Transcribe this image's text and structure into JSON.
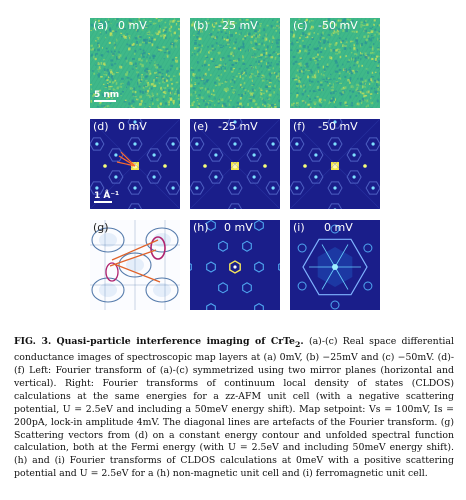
{
  "panels": [
    {
      "id": "a",
      "label": "(a)",
      "energy": "0 mV",
      "scale": "5 nm",
      "type": "real"
    },
    {
      "id": "b",
      "label": "(b)",
      "energy": "-25 mV",
      "scale": "",
      "type": "real"
    },
    {
      "id": "c",
      "label": "(c)",
      "energy": "-50 mV",
      "scale": "",
      "type": "real"
    },
    {
      "id": "d",
      "label": "(d)",
      "energy": "0 mV",
      "scale": "1 Å⁻¹",
      "type": "fourier"
    },
    {
      "id": "e",
      "label": "(e)",
      "energy": "-25 mV",
      "scale": "",
      "type": "fourier"
    },
    {
      "id": "f",
      "label": "(f)",
      "energy": "-50 mV",
      "scale": "",
      "type": "fourier"
    },
    {
      "id": "g",
      "label": "(g)",
      "energy": "",
      "scale": "",
      "type": "contour"
    },
    {
      "id": "h",
      "label": "(h)",
      "energy": "0 mV",
      "scale": "",
      "type": "cldos-nm"
    },
    {
      "id": "i",
      "label": "(i)",
      "energy": "0 mV",
      "scale": "",
      "type": "cldos-fm"
    }
  ],
  "caption": {
    "fig": "FIG. 3.",
    "title": "Quasi-particle interference imaging of CrTe",
    "title_sub": "2",
    "title_end": ".",
    "body": "(a)-(c) Real space differential conductance images of spectroscopic map layers at (a) 0mV, (b) −25mV and (c) −50mV. (d)-(f) Left: Fourier transform of (a)-(c) symmetrized using two mirror planes (horizontal and vertical). Right: Fourier transforms of continuum local density of states (CLDOS) calculations at the same energies for a zz-AFM unit cell (with a negative scattering potential, U = 2.5eV and including a 50meV energy shift). Map setpoint: Vs = 100mV, Is = 200pA, lock-in amplitude 4mV. The diagonal lines are artefacts of the Fourier transform. (g) Scattering vectors from (d) on a constant energy contour and unfolded spectral function calculation, both at the Fermi energy (with U = 2.5eV and including 50meV energy shift). (h) and (i) Fourier transforms of CLDOS calculations at 0meV with a positive scattering potential and U = 2.5eV for a (h) non-magnetic unit cell and (i) ferromagnetic unit cell."
  },
  "colors": {
    "real_bg": "#3fb889",
    "fourier_bg": "#1a1e8a",
    "contour_line": "#1c4f8f",
    "scatter_line": "#e0622a",
    "pocket": "#b0226e"
  }
}
